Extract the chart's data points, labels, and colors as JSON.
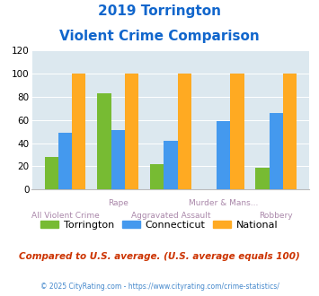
{
  "title_line1": "2019 Torrington",
  "title_line2": "Violent Crime Comparison",
  "top_xlabels": [
    "",
    "Rape",
    "",
    "Murder & Mans...",
    ""
  ],
  "bot_xlabels": [
    "All Violent Crime",
    "",
    "Aggravated Assault",
    "",
    "Robbery"
  ],
  "torrington": [
    28,
    83,
    22,
    0,
    19
  ],
  "connecticut": [
    49,
    51,
    42,
    59,
    66
  ],
  "national": [
    100,
    100,
    100,
    100,
    100
  ],
  "color_torrington": "#77bb33",
  "color_connecticut": "#4499ee",
  "color_national": "#ffaa22",
  "ylim": [
    0,
    120
  ],
  "yticks": [
    0,
    20,
    40,
    60,
    80,
    100,
    120
  ],
  "plot_bg": "#dce8ef",
  "title_color": "#1166cc",
  "legend_labels": [
    "Torrington",
    "Connecticut",
    "National"
  ],
  "subtitle": "Compared to U.S. average. (U.S. average equals 100)",
  "footer": "© 2025 CityRating.com - https://www.cityrating.com/crime-statistics/",
  "subtitle_color": "#cc3300",
  "footer_color": "#4488cc",
  "top_label_color": "#aa88aa",
  "bot_label_color": "#aa88aa"
}
